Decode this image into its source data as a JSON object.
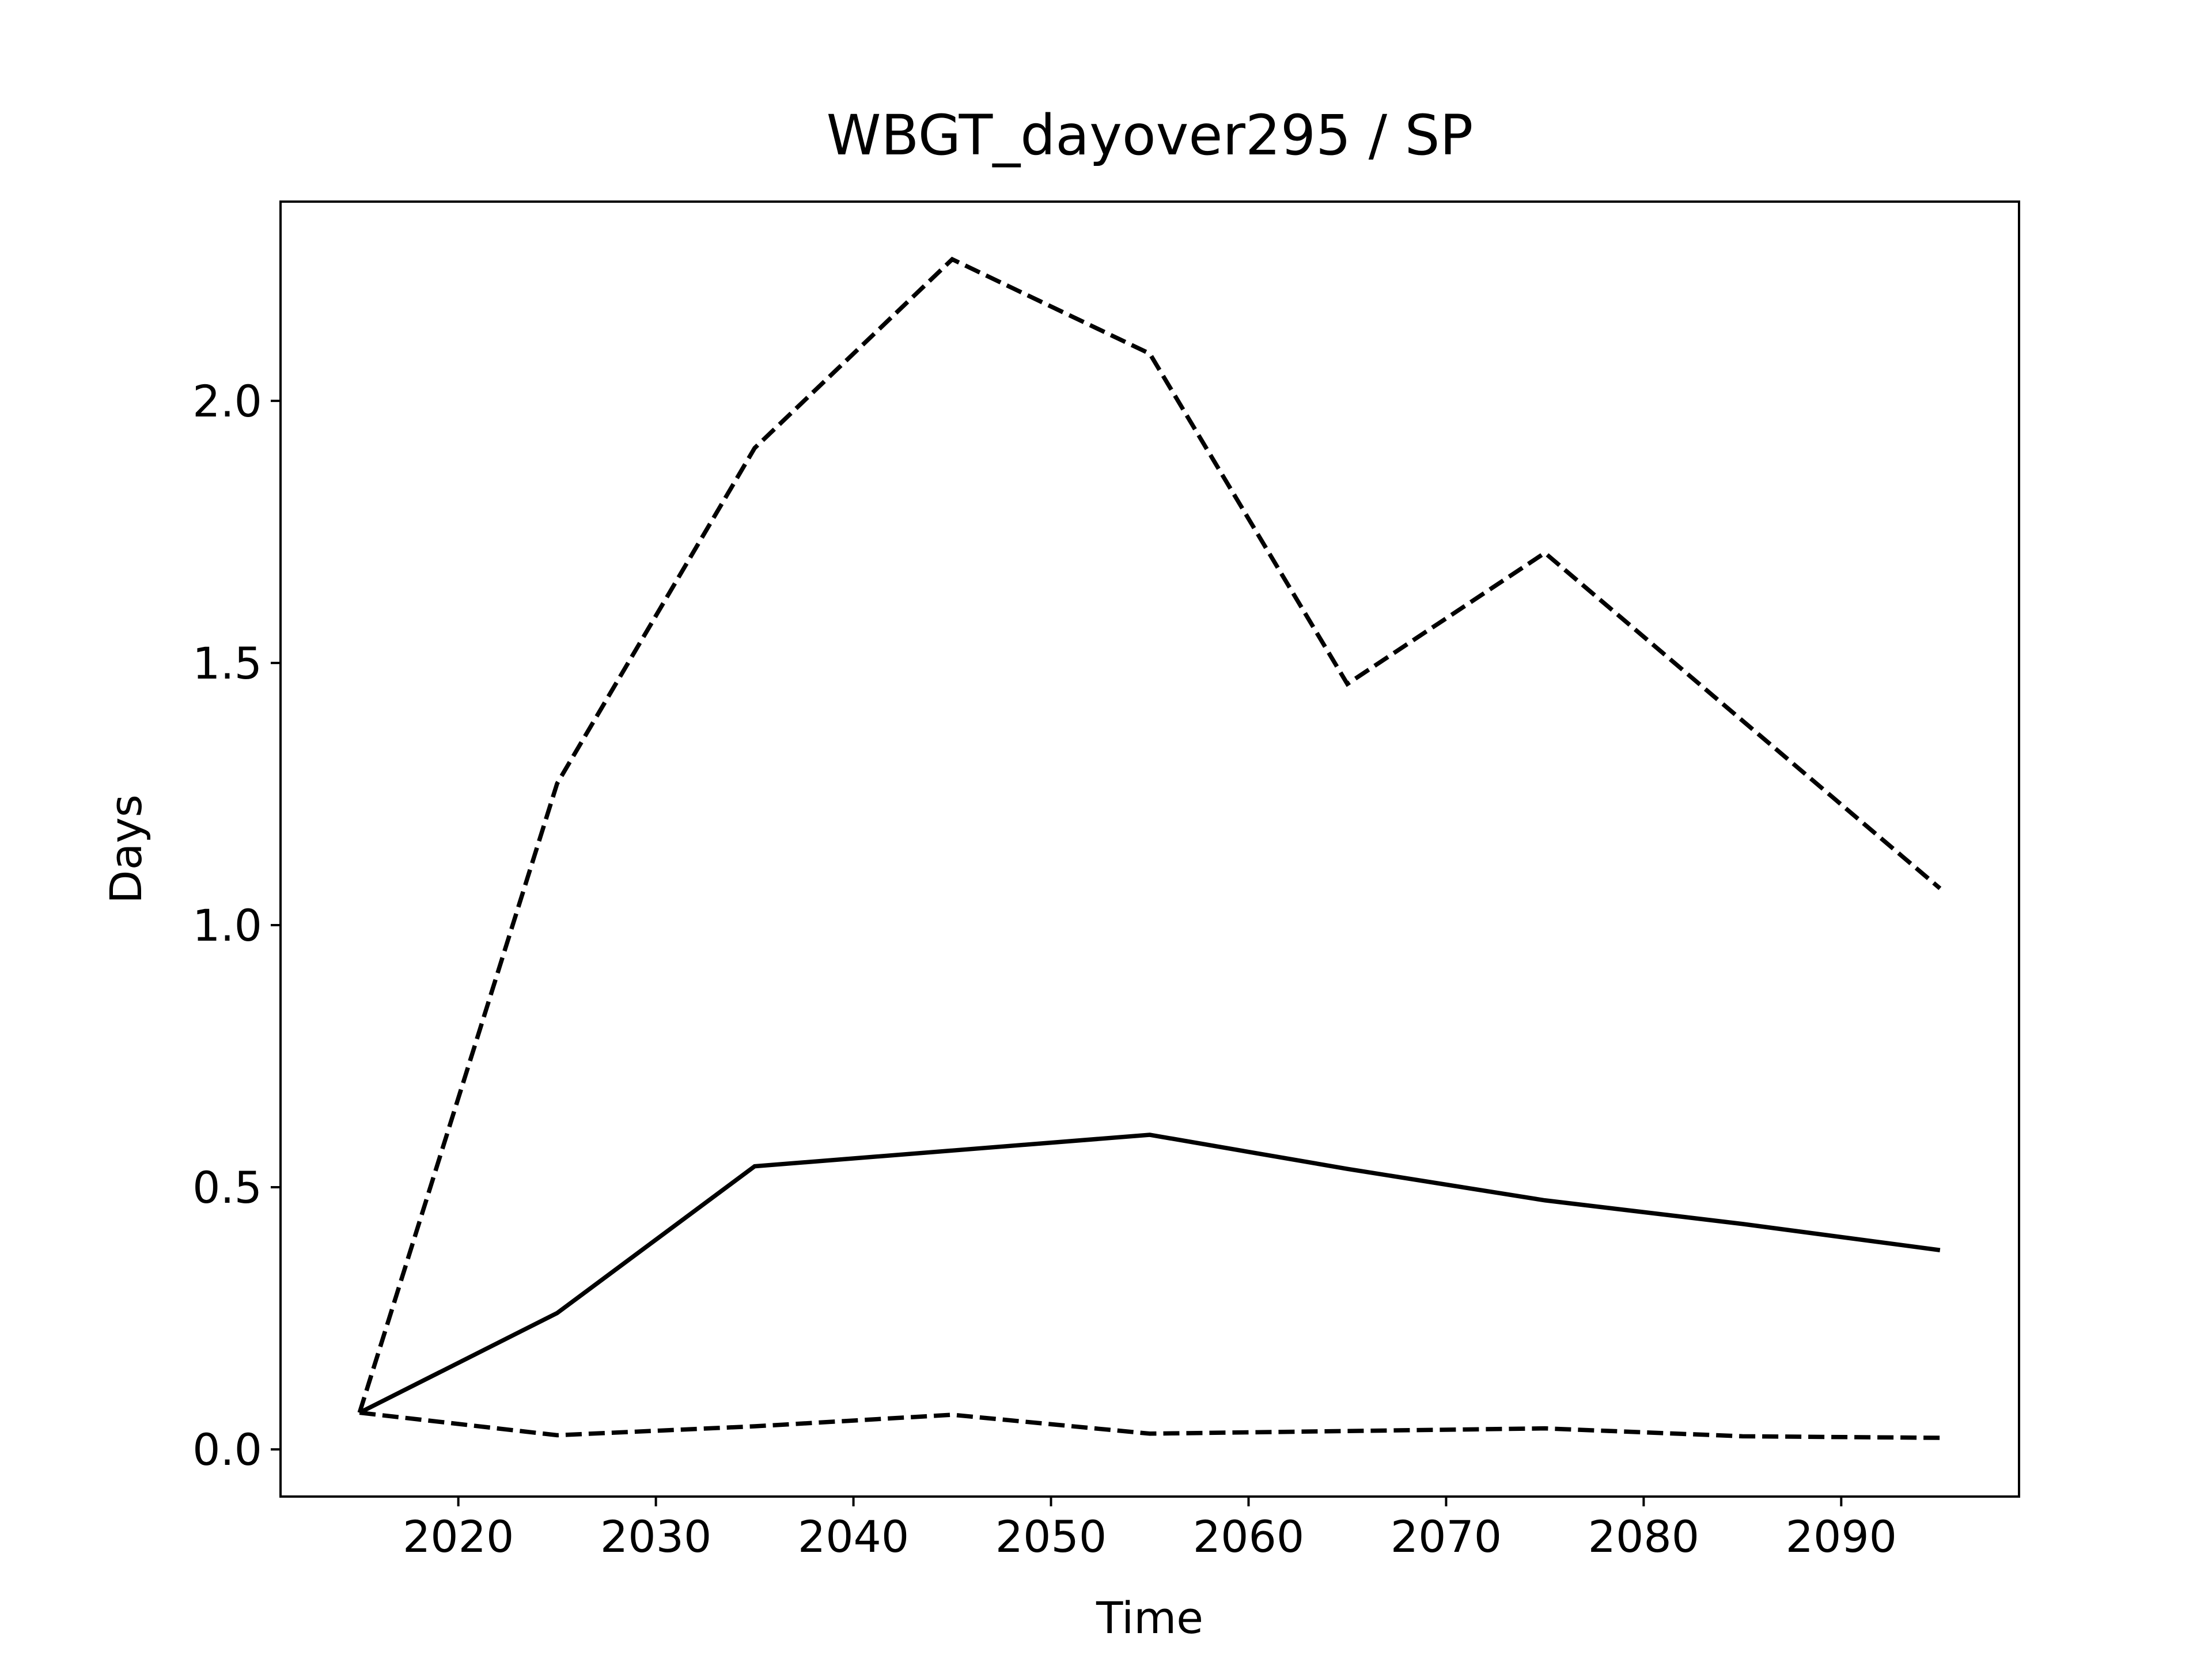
{
  "chart_data": {
    "type": "line",
    "title": "WBGT_dayover295 / SP",
    "xlabel": "Time",
    "ylabel": "Days",
    "x": [
      2015,
      2025,
      2035,
      2045,
      2055,
      2065,
      2075,
      2085,
      2095
    ],
    "series": [
      {
        "color": "#000000",
        "style": "dashed",
        "values": [
          0.07,
          1.27,
          1.91,
          2.27,
          2.09,
          1.46,
          1.71,
          1.39,
          1.07
        ]
      },
      {
        "color": "#000000",
        "style": "solid",
        "values": [
          0.07,
          0.26,
          0.54,
          0.57,
          0.6,
          0.535,
          0.475,
          0.43,
          0.38
        ]
      },
      {
        "color": "#000000",
        "style": "dashed",
        "values": [
          0.07,
          0.027,
          0.044,
          0.066,
          0.03,
          0.035,
          0.04,
          0.025,
          0.022
        ]
      }
    ],
    "xlim": [
      2011,
      2099
    ],
    "xticks": [
      2020,
      2030,
      2040,
      2050,
      2060,
      2070,
      2080,
      2090
    ],
    "ylim": [
      -0.09,
      2.38
    ],
    "yticks": [
      {
        "value": 0,
        "label": "0.0"
      },
      0.5,
      {
        "value": 1,
        "label": "1.0"
      },
      1.5,
      {
        "value": 2,
        "label": "2.0"
      }
    ],
    "grid": false
  }
}
